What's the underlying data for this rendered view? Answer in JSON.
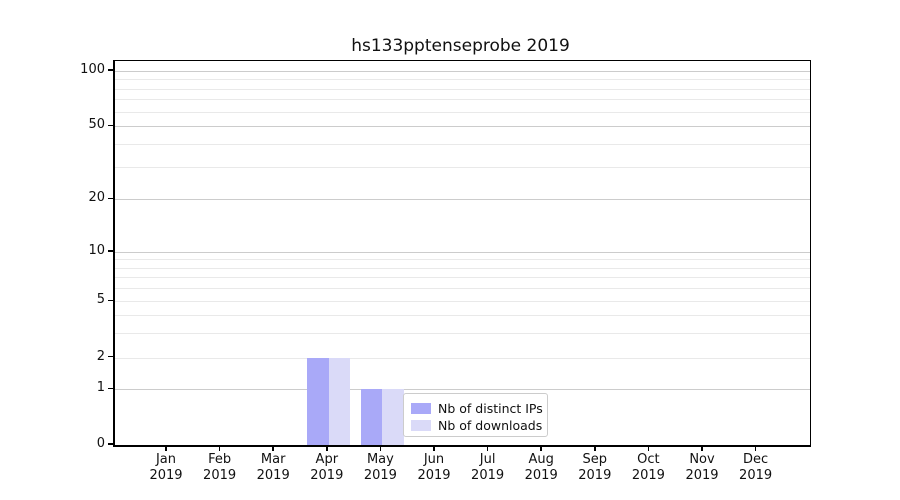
{
  "chart_data": {
    "type": "bar",
    "title": "hs133pptenseprobe 2019",
    "x_categories": [
      {
        "month": "Jan",
        "year": "2019"
      },
      {
        "month": "Feb",
        "year": "2019"
      },
      {
        "month": "Mar",
        "year": "2019"
      },
      {
        "month": "Apr",
        "year": "2019"
      },
      {
        "month": "May",
        "year": "2019"
      },
      {
        "month": "Jun",
        "year": "2019"
      },
      {
        "month": "Jul",
        "year": "2019"
      },
      {
        "month": "Aug",
        "year": "2019"
      },
      {
        "month": "Sep",
        "year": "2019"
      },
      {
        "month": "Oct",
        "year": "2019"
      },
      {
        "month": "Nov",
        "year": "2019"
      },
      {
        "month": "Dec",
        "year": "2019"
      }
    ],
    "series": [
      {
        "name": "Nb of distinct IPs",
        "color": "#a9a9f8",
        "values": [
          0,
          0,
          0,
          2,
          1,
          0,
          0,
          0,
          0,
          0,
          0,
          0
        ]
      },
      {
        "name": "Nb of downloads",
        "color": "#dadaf8",
        "values": [
          0,
          0,
          0,
          2,
          1,
          0,
          0,
          0,
          0,
          0,
          0,
          0
        ]
      }
    ],
    "y_axis": {
      "scale": "symlog",
      "tick_labels": [
        "0",
        "1",
        "2",
        "5",
        "10",
        "20",
        "50",
        "100"
      ],
      "tick_values": [
        0,
        1,
        2,
        5,
        10,
        20,
        50,
        100
      ],
      "range": [
        0,
        130
      ]
    },
    "grid": {
      "major_values": [
        1,
        10,
        20,
        50,
        100
      ],
      "minor_values": [
        2,
        3,
        4,
        5,
        6,
        7,
        8,
        9,
        30,
        40,
        60,
        70,
        80,
        90
      ],
      "major_color": "#cccccc",
      "minor_color": "#e9e9e9"
    },
    "legend": {
      "entries": [
        "Nb of distinct IPs",
        "Nb of downloads"
      ],
      "position": "lower-right-of-center"
    }
  }
}
